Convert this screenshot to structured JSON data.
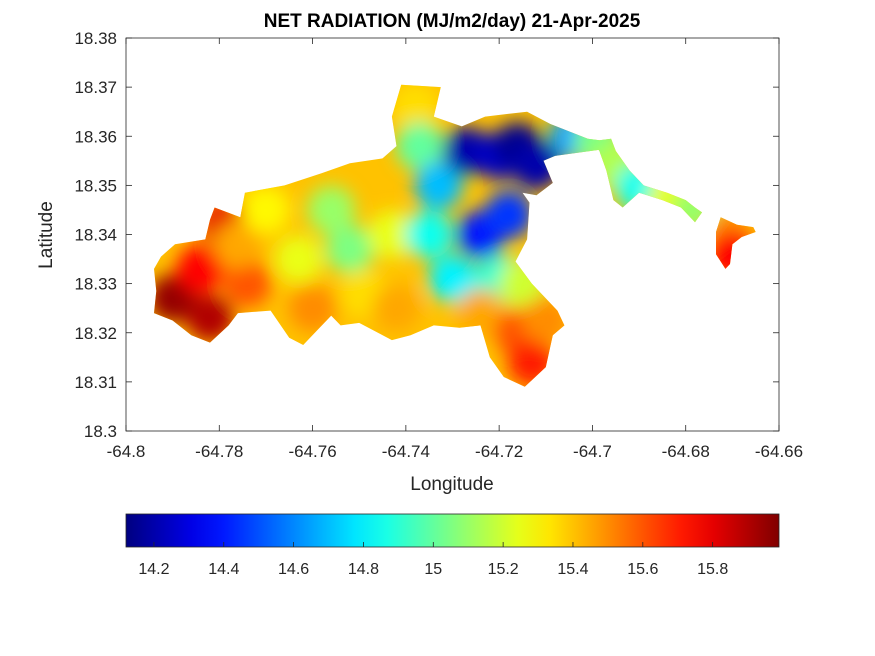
{
  "chart_data": {
    "type": "heatmap",
    "title": "NET RADIATION (MJ/m2/day) 21-Apr-2025",
    "xlabel": "Longitude",
    "ylabel": "Latitude",
    "xlim": [
      -64.8,
      -64.66
    ],
    "ylim": [
      18.3,
      18.38
    ],
    "xticks": [
      -64.8,
      -64.78,
      -64.76,
      -64.74,
      -64.72,
      -64.7,
      -64.68,
      -64.66
    ],
    "xtick_labels": [
      "-64.8",
      "-64.78",
      "-64.76",
      "-64.74",
      "-64.72",
      "-64.7",
      "-64.68",
      "-64.66"
    ],
    "yticks": [
      18.3,
      18.31,
      18.32,
      18.33,
      18.34,
      18.35,
      18.36,
      18.37,
      18.38
    ],
    "ytick_labels": [
      "18.3",
      "18.31",
      "18.32",
      "18.33",
      "18.34",
      "18.35",
      "18.36",
      "18.37",
      "18.38"
    ],
    "grid": false,
    "colormap": "jet",
    "colorbar": {
      "orientation": "horizontal",
      "placement": "bottom",
      "range": [
        14.12,
        15.99
      ],
      "ticks": [
        14.2,
        14.4,
        14.6,
        14.8,
        15,
        15.2,
        15.4,
        15.6,
        15.8
      ],
      "tick_labels": [
        "14.2",
        "14.4",
        "14.6",
        "14.8",
        "15",
        "15.2",
        "15.4",
        "15.6",
        "15.8"
      ]
    },
    "island_outline": [
      [
        -64.7925,
        18.3355
      ],
      [
        -64.7895,
        18.338
      ],
      [
        -64.783,
        18.339
      ],
      [
        -64.782,
        18.343
      ],
      [
        -64.781,
        18.3455
      ],
      [
        -64.7755,
        18.3435
      ],
      [
        -64.7745,
        18.3485
      ],
      [
        -64.766,
        18.35
      ],
      [
        -64.758,
        18.3525
      ],
      [
        -64.752,
        18.3545
      ],
      [
        -64.745,
        18.3555
      ],
      [
        -64.742,
        18.358
      ],
      [
        -64.743,
        18.364
      ],
      [
        -64.741,
        18.3705
      ],
      [
        -64.7325,
        18.37
      ],
      [
        -64.734,
        18.364
      ],
      [
        -64.728,
        18.362
      ],
      [
        -64.723,
        18.364
      ],
      [
        -64.714,
        18.365
      ],
      [
        -64.709,
        18.3625
      ],
      [
        -64.701,
        18.3595
      ],
      [
        -64.697,
        18.359
      ],
      [
        -64.6965,
        18.3575
      ],
      [
        -64.708,
        18.356
      ],
      [
        -64.7105,
        18.355
      ],
      [
        -64.7085,
        18.3505
      ],
      [
        -64.712,
        18.348
      ],
      [
        -64.715,
        18.3485
      ],
      [
        -64.7135,
        18.3465
      ],
      [
        -64.714,
        18.339
      ],
      [
        -64.7165,
        18.3345
      ],
      [
        -64.713,
        18.33
      ],
      [
        -64.7075,
        18.3245
      ],
      [
        -64.706,
        18.3215
      ],
      [
        -64.7085,
        18.3195
      ],
      [
        -64.71,
        18.313
      ],
      [
        -64.7145,
        18.309
      ],
      [
        -64.719,
        18.311
      ],
      [
        -64.722,
        18.315
      ],
      [
        -64.724,
        18.3215
      ],
      [
        -64.7285,
        18.321
      ],
      [
        -64.734,
        18.3215
      ],
      [
        -64.739,
        18.3195
      ],
      [
        -64.743,
        18.3185
      ],
      [
        -64.75,
        18.322
      ],
      [
        -64.754,
        18.3215
      ],
      [
        -64.756,
        18.3235
      ],
      [
        -64.759,
        18.3205
      ],
      [
        -64.762,
        18.3175
      ],
      [
        -64.765,
        18.319
      ],
      [
        -64.769,
        18.3245
      ],
      [
        -64.776,
        18.324
      ],
      [
        -64.778,
        18.3215
      ],
      [
        -64.782,
        18.318
      ],
      [
        -64.786,
        18.3195
      ],
      [
        -64.79,
        18.3225
      ],
      [
        -64.794,
        18.324
      ],
      [
        -64.7935,
        18.3285
      ],
      [
        -64.794,
        18.333
      ],
      [
        -64.7925,
        18.3355
      ]
    ],
    "island_east_strip": [
      [
        -64.7,
        18.359
      ],
      [
        -64.696,
        18.3595
      ],
      [
        -64.695,
        18.357
      ],
      [
        -64.692,
        18.353
      ],
      [
        -64.689,
        18.35
      ],
      [
        -64.684,
        18.3485
      ],
      [
        -64.68,
        18.347
      ],
      [
        -64.678,
        18.3455
      ],
      [
        -64.6765,
        18.3445
      ],
      [
        -64.678,
        18.3425
      ],
      [
        -64.681,
        18.3455
      ],
      [
        -64.685,
        18.347
      ],
      [
        -64.69,
        18.3485
      ],
      [
        -64.6935,
        18.3455
      ],
      [
        -64.6955,
        18.347
      ],
      [
        -64.697,
        18.353
      ],
      [
        -64.6985,
        18.357
      ],
      [
        -64.7,
        18.359
      ]
    ],
    "island_east_tip": [
      [
        -64.6725,
        18.3435
      ],
      [
        -64.669,
        18.342
      ],
      [
        -64.6655,
        18.3415
      ],
      [
        -64.665,
        18.3405
      ],
      [
        -64.668,
        18.3395
      ],
      [
        -64.67,
        18.338
      ],
      [
        -64.6705,
        18.334
      ],
      [
        -64.6715,
        18.333
      ],
      [
        -64.6725,
        18.3345
      ],
      [
        -64.6735,
        18.336
      ],
      [
        -64.6735,
        18.3405
      ],
      [
        -64.6725,
        18.3435
      ]
    ],
    "field_blobs": [
      {
        "lon": -64.79,
        "lat": 18.327,
        "value": 15.95
      },
      {
        "lon": -64.782,
        "lat": 18.323,
        "value": 15.9
      },
      {
        "lon": -64.784,
        "lat": 18.333,
        "value": 15.75
      },
      {
        "lon": -64.779,
        "lat": 18.342,
        "value": 15.8
      },
      {
        "lon": -64.774,
        "lat": 18.33,
        "value": 15.6
      },
      {
        "lon": -64.776,
        "lat": 18.338,
        "value": 15.45
      },
      {
        "lon": -64.77,
        "lat": 18.345,
        "value": 15.3
      },
      {
        "lon": -64.763,
        "lat": 18.335,
        "value": 15.25
      },
      {
        "lon": -64.756,
        "lat": 18.345,
        "value": 15.1
      },
      {
        "lon": -64.752,
        "lat": 18.337,
        "value": 15.05
      },
      {
        "lon": -64.76,
        "lat": 18.325,
        "value": 15.5
      },
      {
        "lon": -64.749,
        "lat": 18.328,
        "value": 15.35
      },
      {
        "lon": -64.743,
        "lat": 18.34,
        "value": 15.25
      },
      {
        "lon": -64.742,
        "lat": 18.325,
        "value": 15.45
      },
      {
        "lon": -64.738,
        "lat": 18.366,
        "value": 15.35
      },
      {
        "lon": -64.737,
        "lat": 18.358,
        "value": 15.0
      },
      {
        "lon": -64.735,
        "lat": 18.34,
        "value": 14.85
      },
      {
        "lon": -64.733,
        "lat": 18.35,
        "value": 14.7
      },
      {
        "lon": -64.73,
        "lat": 18.331,
        "value": 14.8
      },
      {
        "lon": -64.727,
        "lat": 18.357,
        "value": 14.2
      },
      {
        "lon": -64.724,
        "lat": 18.34,
        "value": 14.4
      },
      {
        "lon": -64.72,
        "lat": 18.356,
        "value": 14.25
      },
      {
        "lon": -64.716,
        "lat": 18.358,
        "value": 14.15
      },
      {
        "lon": -64.712,
        "lat": 18.354,
        "value": 14.2
      },
      {
        "lon": -64.718,
        "lat": 18.344,
        "value": 14.45
      },
      {
        "lon": -64.72,
        "lat": 18.331,
        "value": 14.9
      },
      {
        "lon": -64.715,
        "lat": 18.33,
        "value": 15.2
      },
      {
        "lon": -64.724,
        "lat": 18.324,
        "value": 15.45
      },
      {
        "lon": -64.716,
        "lat": 18.32,
        "value": 15.6
      },
      {
        "lon": -64.713,
        "lat": 18.314,
        "value": 15.7
      },
      {
        "lon": -64.71,
        "lat": 18.3225,
        "value": 15.5
      },
      {
        "lon": -64.704,
        "lat": 18.36,
        "value": 14.65
      },
      {
        "lon": -64.699,
        "lat": 18.359,
        "value": 15.05
      },
      {
        "lon": -64.695,
        "lat": 18.354,
        "value": 15.15
      },
      {
        "lon": -64.69,
        "lat": 18.3495,
        "value": 14.85
      },
      {
        "lon": -64.683,
        "lat": 18.3475,
        "value": 15.25
      },
      {
        "lon": -64.678,
        "lat": 18.345,
        "value": 15.1
      },
      {
        "lon": -64.671,
        "lat": 18.34,
        "value": 15.5
      },
      {
        "lon": -64.67,
        "lat": 18.336,
        "value": 15.75
      }
    ],
    "field_background_value": 15.4
  }
}
